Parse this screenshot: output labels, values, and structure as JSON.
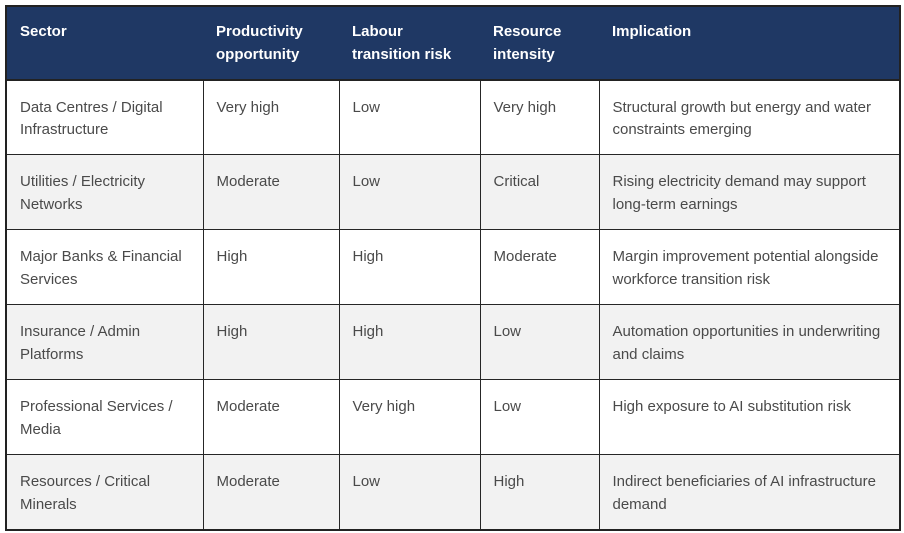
{
  "chart_data": {
    "type": "table",
    "title": "",
    "columns": [
      "Sector",
      "Productivity opportunity",
      "Labour transition risk",
      "Resource intensity",
      "Implication"
    ],
    "rows": [
      {
        "sector": "Data Centres / Digital Infrastructure",
        "productivity": "Very high",
        "labour": "Low",
        "resource": "Very high",
        "implication": "Structural growth but energy and water constraints emerging"
      },
      {
        "sector": "Utilities / Electricity Networks",
        "productivity": "Moderate",
        "labour": "Low",
        "resource": "Critical",
        "implication": "Rising electricity demand may support long-term earnings"
      },
      {
        "sector": "Major Banks & Financial Services",
        "productivity": "High",
        "labour": "High",
        "resource": "Moderate",
        "implication": "Margin improvement potential alongside workforce transition risk"
      },
      {
        "sector": "Insurance / Admin Platforms",
        "productivity": "High",
        "labour": "High",
        "resource": "Low",
        "implication": "Automation opportunities in underwriting and claims"
      },
      {
        "sector": "Professional Services / Media",
        "productivity": "Moderate",
        "labour": "Very high",
        "resource": "Low",
        "implication": "High exposure to AI substitution risk"
      },
      {
        "sector": "Resources / Critical Minerals",
        "productivity": "Moderate",
        "labour": "Low",
        "resource": "High",
        "implication": "Indirect beneficiaries of AI infrastructure demand"
      }
    ],
    "colors": {
      "header_bg": "#1f3864",
      "header_text": "#ffffff",
      "row_bg": "#ffffff",
      "row_alt_bg": "#f2f2f2",
      "border": "#262626",
      "body_text": "#4a4a4a"
    },
    "layout": {
      "zebra_striping": true,
      "header_position": "top",
      "cell_align": "top-left"
    }
  }
}
